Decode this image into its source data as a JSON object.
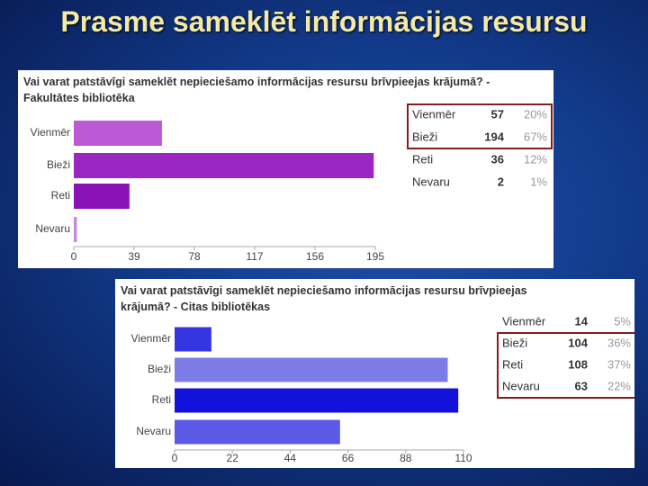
{
  "title": "Prasme sameklēt informācijas resursu",
  "chart_data": [
    {
      "type": "bar",
      "orientation": "horizontal",
      "title": "Vai varat patstāvīgi sameklēt nepieciešamo informācijas resursu brīvpieejas krājumā? - Fakultātes bibliotēka",
      "categories": [
        "Vienmēr",
        "Bieži",
        "Reti",
        "Nevaru"
      ],
      "values": [
        57,
        194,
        36,
        2
      ],
      "percentages": [
        "20%",
        "67%",
        "12%",
        "1%"
      ],
      "colors": [
        "#bb5ad4",
        "#9b27c2",
        "#8a12b5",
        "#c58ae0"
      ],
      "highlighted_rows": [
        0,
        1
      ],
      "xlim": [
        0,
        195
      ],
      "xticks": [
        0,
        39,
        78,
        117,
        156,
        195
      ],
      "grid": false
    },
    {
      "type": "bar",
      "orientation": "horizontal",
      "title": "Vai varat patstāvīgi sameklēt nepieciešamo informācijas resursu brīvpieejas krājumā? - Citas bibliotēkas",
      "categories": [
        "Vienmēr",
        "Bieži",
        "Reti",
        "Nevaru"
      ],
      "values": [
        14,
        104,
        108,
        63
      ],
      "percentages": [
        "5%",
        "36%",
        "37%",
        "22%"
      ],
      "colors": [
        "#3434e0",
        "#7c7ce8",
        "#1212dc",
        "#5a5ae6"
      ],
      "highlighted_rows": [
        1,
        2,
        3
      ],
      "xlim": [
        0,
        110
      ],
      "xticks": [
        0,
        22,
        44,
        66,
        88,
        110
      ],
      "grid": false
    }
  ]
}
